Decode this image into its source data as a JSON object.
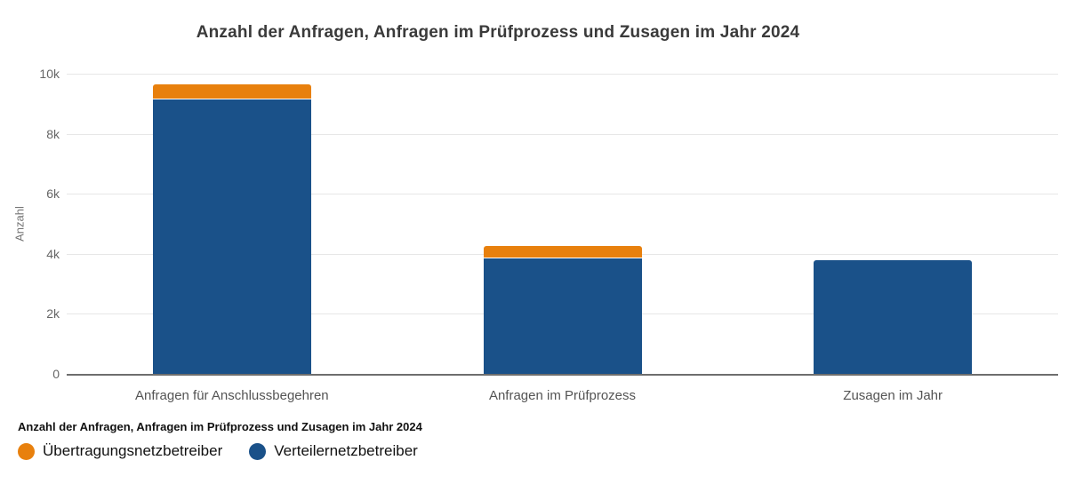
{
  "chart_title": "Anzahl der Anfragen, Anfragen im Prüfprozess und Zusagen im Jahr 2024",
  "legend": {
    "title": "Anzahl der Anfragen, Anfragen im Prüfprozess und Zusagen im Jahr 2024",
    "items": [
      {
        "label": "Übertragungsnetzbetreiber",
        "color": "#e8800d"
      },
      {
        "label": "Verteilernetzbetreiber",
        "color": "#1a5189"
      }
    ]
  },
  "chart_data": {
    "type": "bar",
    "stacked": true,
    "title": "Anzahl der Anfragen, Anfragen im Prüfprozess und Zusagen im Jahr 2024",
    "categories": [
      "Anfragen für Anschlussbegehren",
      "Anfragen im Prüfprozess",
      "Zusagen im Jahr"
    ],
    "series": [
      {
        "name": "Verteilernetzbetreiber",
        "color": "#1a5189",
        "values": [
          9150,
          3850,
          3800
        ]
      },
      {
        "name": "Übertragungsnetzbetreiber",
        "color": "#e8800d",
        "values": [
          500,
          400,
          0
        ]
      }
    ],
    "stack_order": "first series at bottom",
    "totals": [
      9650,
      4250,
      3800
    ],
    "xlabel": "",
    "ylabel": "Anzahl",
    "ylim": [
      0,
      10000
    ],
    "yticks": [
      {
        "value": 0,
        "label": "0"
      },
      {
        "value": 2000,
        "label": "2k"
      },
      {
        "value": 4000,
        "label": "4k"
      },
      {
        "value": 6000,
        "label": "6k"
      },
      {
        "value": 8000,
        "label": "8k"
      },
      {
        "value": 10000,
        "label": "10k"
      }
    ],
    "grid": true,
    "legend_position": "bottom-left"
  },
  "colors": {
    "uebertragungsnetzbetreiber_orange": "#e8800d",
    "verteilernetzbetreiber_blue": "#1a5189",
    "gridline": "#e7e7e7",
    "axis_line": "#6e6e6e",
    "title_text": "#3a3a3a",
    "tick_text": "#666666",
    "category_text": "#545454"
  }
}
